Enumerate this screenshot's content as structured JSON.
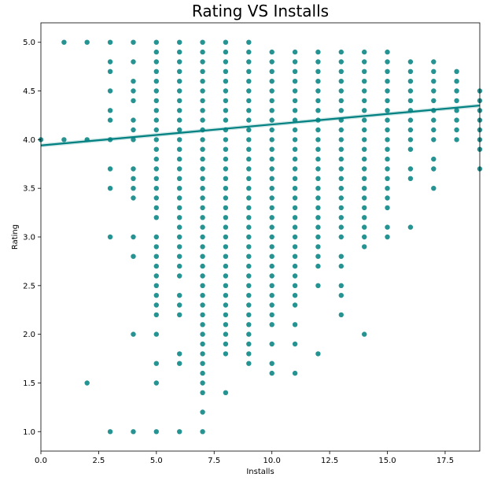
{
  "chart_data": {
    "type": "scatter",
    "title": "Rating VS Installs",
    "xlabel": "Installs",
    "ylabel": "Rating",
    "xlim": [
      0,
      19
    ],
    "ylim": [
      0.8,
      5.2
    ],
    "xticks": [
      "0.0",
      "2.5",
      "5.0",
      "7.5",
      "10.0",
      "12.5",
      "15.0",
      "17.5"
    ],
    "yticks": [
      "1.0",
      "1.5",
      "2.0",
      "2.5",
      "3.0",
      "3.5",
      "4.0",
      "4.5",
      "5.0"
    ],
    "grid": false,
    "legend": "none",
    "point_color": "#008080",
    "line_color": "#008080",
    "regression_line": {
      "x": [
        0,
        19
      ],
      "y": [
        3.94,
        4.35
      ]
    },
    "points_by_x": [
      {
        "x": 0,
        "y": [
          4.0
        ]
      },
      {
        "x": 1,
        "y": [
          4.0,
          5.0
        ]
      },
      {
        "x": 2,
        "y": [
          1.5,
          4.0,
          5.0
        ]
      },
      {
        "x": 3,
        "y": [
          1.0,
          3.0,
          3.5,
          3.7,
          4.0,
          4.2,
          4.3,
          4.5,
          4.7,
          4.8,
          5.0
        ]
      },
      {
        "x": 4,
        "y": [
          1.0,
          2.0,
          2.8,
          3.0,
          3.4,
          3.5,
          3.6,
          3.7,
          4.0,
          4.1,
          4.2,
          4.4,
          4.5,
          4.6,
          4.8,
          5.0
        ]
      },
      {
        "x": 5,
        "y": [
          1.0,
          1.5,
          1.7,
          2.0,
          2.2,
          2.3,
          2.4,
          2.5,
          2.6,
          2.7,
          2.8,
          2.9,
          3.0,
          3.2,
          3.3,
          3.4,
          3.5,
          3.6,
          3.7,
          3.8,
          3.9,
          4.0,
          4.1,
          4.2,
          4.3,
          4.4,
          4.5,
          4.6,
          4.7,
          4.8,
          4.9,
          5.0
        ]
      },
      {
        "x": 6,
        "y": [
          1.0,
          1.7,
          1.8,
          2.2,
          2.3,
          2.4,
          2.6,
          2.7,
          2.8,
          2.9,
          3.0,
          3.1,
          3.2,
          3.3,
          3.4,
          3.5,
          3.6,
          3.7,
          3.8,
          3.9,
          4.0,
          4.1,
          4.2,
          4.3,
          4.4,
          4.5,
          4.6,
          4.7,
          4.8,
          4.9,
          5.0
        ]
      },
      {
        "x": 7,
        "y": [
          1.0,
          1.2,
          1.4,
          1.5,
          1.6,
          1.7,
          1.8,
          1.9,
          2.0,
          2.1,
          2.2,
          2.3,
          2.4,
          2.5,
          2.6,
          2.7,
          2.8,
          2.9,
          3.0,
          3.1,
          3.2,
          3.3,
          3.4,
          3.5,
          3.6,
          3.7,
          3.8,
          3.9,
          4.0,
          4.1,
          4.2,
          4.3,
          4.4,
          4.5,
          4.6,
          4.7,
          4.8,
          4.9,
          5.0
        ]
      },
      {
        "x": 8,
        "y": [
          1.4,
          1.8,
          1.9,
          2.0,
          2.1,
          2.2,
          2.3,
          2.4,
          2.5,
          2.6,
          2.7,
          2.8,
          2.9,
          3.0,
          3.1,
          3.2,
          3.3,
          3.4,
          3.5,
          3.6,
          3.7,
          3.8,
          3.9,
          4.0,
          4.1,
          4.2,
          4.3,
          4.4,
          4.5,
          4.6,
          4.7,
          4.8,
          4.9,
          5.0
        ]
      },
      {
        "x": 9,
        "y": [
          1.7,
          1.8,
          1.9,
          2.0,
          2.1,
          2.2,
          2.3,
          2.4,
          2.5,
          2.6,
          2.7,
          2.8,
          2.9,
          3.0,
          3.1,
          3.2,
          3.3,
          3.4,
          3.5,
          3.6,
          3.7,
          3.8,
          3.9,
          4.0,
          4.1,
          4.2,
          4.3,
          4.4,
          4.5,
          4.6,
          4.7,
          4.8,
          4.9,
          5.0
        ]
      },
      {
        "x": 10,
        "y": [
          1.6,
          1.7,
          1.9,
          2.1,
          2.2,
          2.3,
          2.4,
          2.5,
          2.6,
          2.7,
          2.8,
          2.9,
          3.0,
          3.1,
          3.2,
          3.3,
          3.4,
          3.5,
          3.6,
          3.7,
          3.8,
          3.9,
          4.0,
          4.1,
          4.2,
          4.3,
          4.4,
          4.5,
          4.6,
          4.7,
          4.8,
          4.9
        ]
      },
      {
        "x": 11,
        "y": [
          1.6,
          1.9,
          2.1,
          2.3,
          2.4,
          2.5,
          2.6,
          2.7,
          2.8,
          2.9,
          3.0,
          3.1,
          3.2,
          3.3,
          3.4,
          3.5,
          3.6,
          3.7,
          3.8,
          3.9,
          4.0,
          4.1,
          4.2,
          4.3,
          4.4,
          4.5,
          4.6,
          4.7,
          4.8,
          4.9
        ]
      },
      {
        "x": 12,
        "y": [
          1.8,
          2.5,
          2.7,
          2.8,
          2.9,
          3.0,
          3.1,
          3.2,
          3.3,
          3.4,
          3.5,
          3.6,
          3.7,
          3.8,
          3.9,
          4.0,
          4.1,
          4.2,
          4.3,
          4.4,
          4.5,
          4.6,
          4.7,
          4.8,
          4.9
        ]
      },
      {
        "x": 13,
        "y": [
          2.2,
          2.4,
          2.5,
          2.7,
          2.8,
          3.0,
          3.1,
          3.2,
          3.3,
          3.4,
          3.5,
          3.6,
          3.7,
          3.8,
          3.9,
          4.0,
          4.1,
          4.2,
          4.3,
          4.4,
          4.5,
          4.6,
          4.7,
          4.8,
          4.9
        ]
      },
      {
        "x": 14,
        "y": [
          2.0,
          2.9,
          3.0,
          3.1,
          3.2,
          3.3,
          3.4,
          3.5,
          3.6,
          3.7,
          3.8,
          3.9,
          4.0,
          4.1,
          4.2,
          4.3,
          4.4,
          4.5,
          4.6,
          4.7,
          4.8,
          4.9
        ]
      },
      {
        "x": 15,
        "y": [
          3.0,
          3.1,
          3.3,
          3.4,
          3.5,
          3.6,
          3.7,
          3.8,
          3.9,
          4.0,
          4.1,
          4.2,
          4.3,
          4.4,
          4.5,
          4.6,
          4.7,
          4.8,
          4.9
        ]
      },
      {
        "x": 16,
        "y": [
          3.1,
          3.6,
          3.7,
          3.9,
          4.0,
          4.1,
          4.2,
          4.3,
          4.4,
          4.5,
          4.6,
          4.7,
          4.8
        ]
      },
      {
        "x": 17,
        "y": [
          3.5,
          3.7,
          3.8,
          4.0,
          4.1,
          4.2,
          4.3,
          4.4,
          4.5,
          4.6,
          4.7,
          4.8
        ]
      },
      {
        "x": 18,
        "y": [
          4.0,
          4.1,
          4.2,
          4.3,
          4.4,
          4.5,
          4.6,
          4.7
        ]
      },
      {
        "x": 19,
        "y": [
          3.7,
          3.9,
          4.0,
          4.1,
          4.2,
          4.3,
          4.4,
          4.5
        ]
      }
    ]
  }
}
